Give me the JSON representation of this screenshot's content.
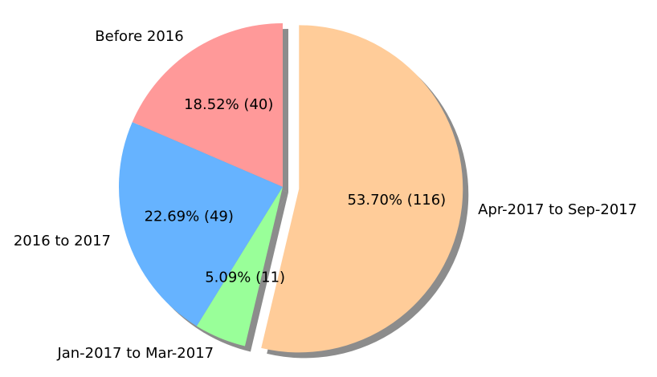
{
  "chart_data": {
    "type": "pie",
    "title": "",
    "start_angle_deg": 90,
    "direction": "counterclockwise",
    "shadow": true,
    "slices": [
      {
        "label": "Before 2016",
        "value": 40,
        "percent_label": "18.52%  (40)",
        "color": "#ff9999",
        "explode": 0
      },
      {
        "label": "2016 to 2017",
        "value": 49,
        "percent_label": "22.69%  (49)",
        "color": "#66b3ff",
        "explode": 0
      },
      {
        "label": "Jan-2017 to Mar-2017",
        "value": 11,
        "percent_label": "5.09%  (11)",
        "color": "#99ff99",
        "explode": 0
      },
      {
        "label": "Apr-2017 to Sep-2017",
        "value": 116,
        "percent_label": "53.70%  (116)",
        "color": "#ffcc99",
        "explode": 0.1
      }
    ]
  }
}
